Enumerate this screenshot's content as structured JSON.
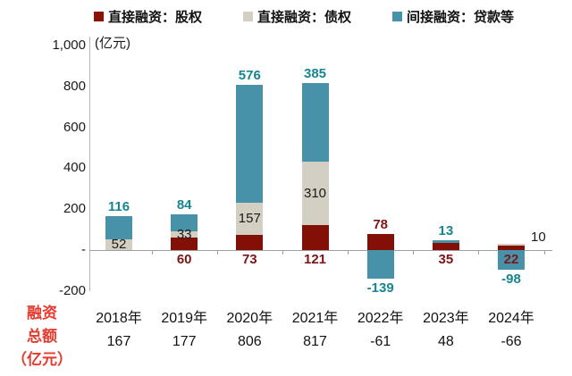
{
  "legend": {
    "items": [
      {
        "key": "equity",
        "label": "直接融资：股权",
        "color": "#8b1207"
      },
      {
        "key": "debt",
        "label": "直接融资：债权",
        "color": "#d3cfc2"
      },
      {
        "key": "loans",
        "label": "间接融资：贷款等",
        "color": "#4792a8"
      }
    ]
  },
  "chart_data": {
    "type": "bar",
    "stacked": true,
    "unit_label": "(亿元)",
    "categories": [
      "2018年",
      "2019年",
      "2020年",
      "2021年",
      "2022年",
      "2023年",
      "2024年"
    ],
    "series": [
      {
        "key": "equity",
        "name": "直接融资：股权",
        "color": "#821007",
        "values": [
          0,
          60,
          73,
          121,
          78,
          35,
          22
        ]
      },
      {
        "key": "debt",
        "name": "直接融资：债权",
        "color": "#d3cfc2",
        "values": [
          52,
          33,
          157,
          310,
          0,
          0,
          10
        ]
      },
      {
        "key": "loans",
        "name": "间接融资：贷款等",
        "color": "#4792a8",
        "values": [
          116,
          84,
          576,
          385,
          -139,
          13,
          -98
        ]
      }
    ],
    "y_axis": {
      "min": -200,
      "max": 1000,
      "grid": false,
      "ticks": [
        {
          "label": "1,000",
          "value": 1000
        },
        {
          "label": "800",
          "value": 800
        },
        {
          "label": "600",
          "value": 600
        },
        {
          "label": "400",
          "value": 400
        },
        {
          "label": "200",
          "value": 200
        },
        {
          "label": "-",
          "value": 0
        },
        {
          "label": "-200",
          "value": -200
        }
      ]
    },
    "annotations": [
      [
        {
          "text": "116",
          "color": "teal",
          "placement": "above"
        },
        {
          "text": "52",
          "color": "black",
          "placement": "inside-debt"
        }
      ],
      [
        {
          "text": "84",
          "color": "teal",
          "placement": "above"
        },
        {
          "text": "33",
          "color": "black",
          "placement": "inside-debt"
        },
        {
          "text": "60",
          "color": "darkred",
          "placement": "below-axis"
        }
      ],
      [
        {
          "text": "576",
          "color": "teal",
          "placement": "above"
        },
        {
          "text": "157",
          "color": "black",
          "placement": "inside-debt"
        },
        {
          "text": "73",
          "color": "darkred",
          "placement": "below-axis"
        }
      ],
      [
        {
          "text": "385",
          "color": "teal",
          "placement": "above"
        },
        {
          "text": "310",
          "color": "black",
          "placement": "inside-debt"
        },
        {
          "text": "121",
          "color": "darkred",
          "placement": "below-axis"
        }
      ],
      [
        {
          "text": "78",
          "color": "darkred",
          "placement": "above"
        },
        {
          "text": "-139",
          "color": "teal",
          "placement": "below-neg"
        }
      ],
      [
        {
          "text": "13",
          "color": "teal",
          "placement": "above"
        },
        {
          "text": "35",
          "color": "darkred",
          "placement": "below-axis"
        }
      ],
      [
        {
          "text": "10",
          "color": "black",
          "placement": "right"
        },
        {
          "text": "22",
          "color": "darkred",
          "placement": "below-axis"
        },
        {
          "text": "-98",
          "color": "teal",
          "placement": "below-neg"
        }
      ]
    ],
    "totals": {
      "header_lines": [
        "融资",
        "总额",
        "（亿元）"
      ],
      "header_color": "#e53a2d",
      "values": [
        "167",
        "177",
        "806",
        "817",
        "-61",
        "48",
        "-66"
      ]
    }
  },
  "palette": {
    "teal_label": "#17858f",
    "darkred_label": "#7d1517",
    "black_label": "#1a1a1a"
  }
}
